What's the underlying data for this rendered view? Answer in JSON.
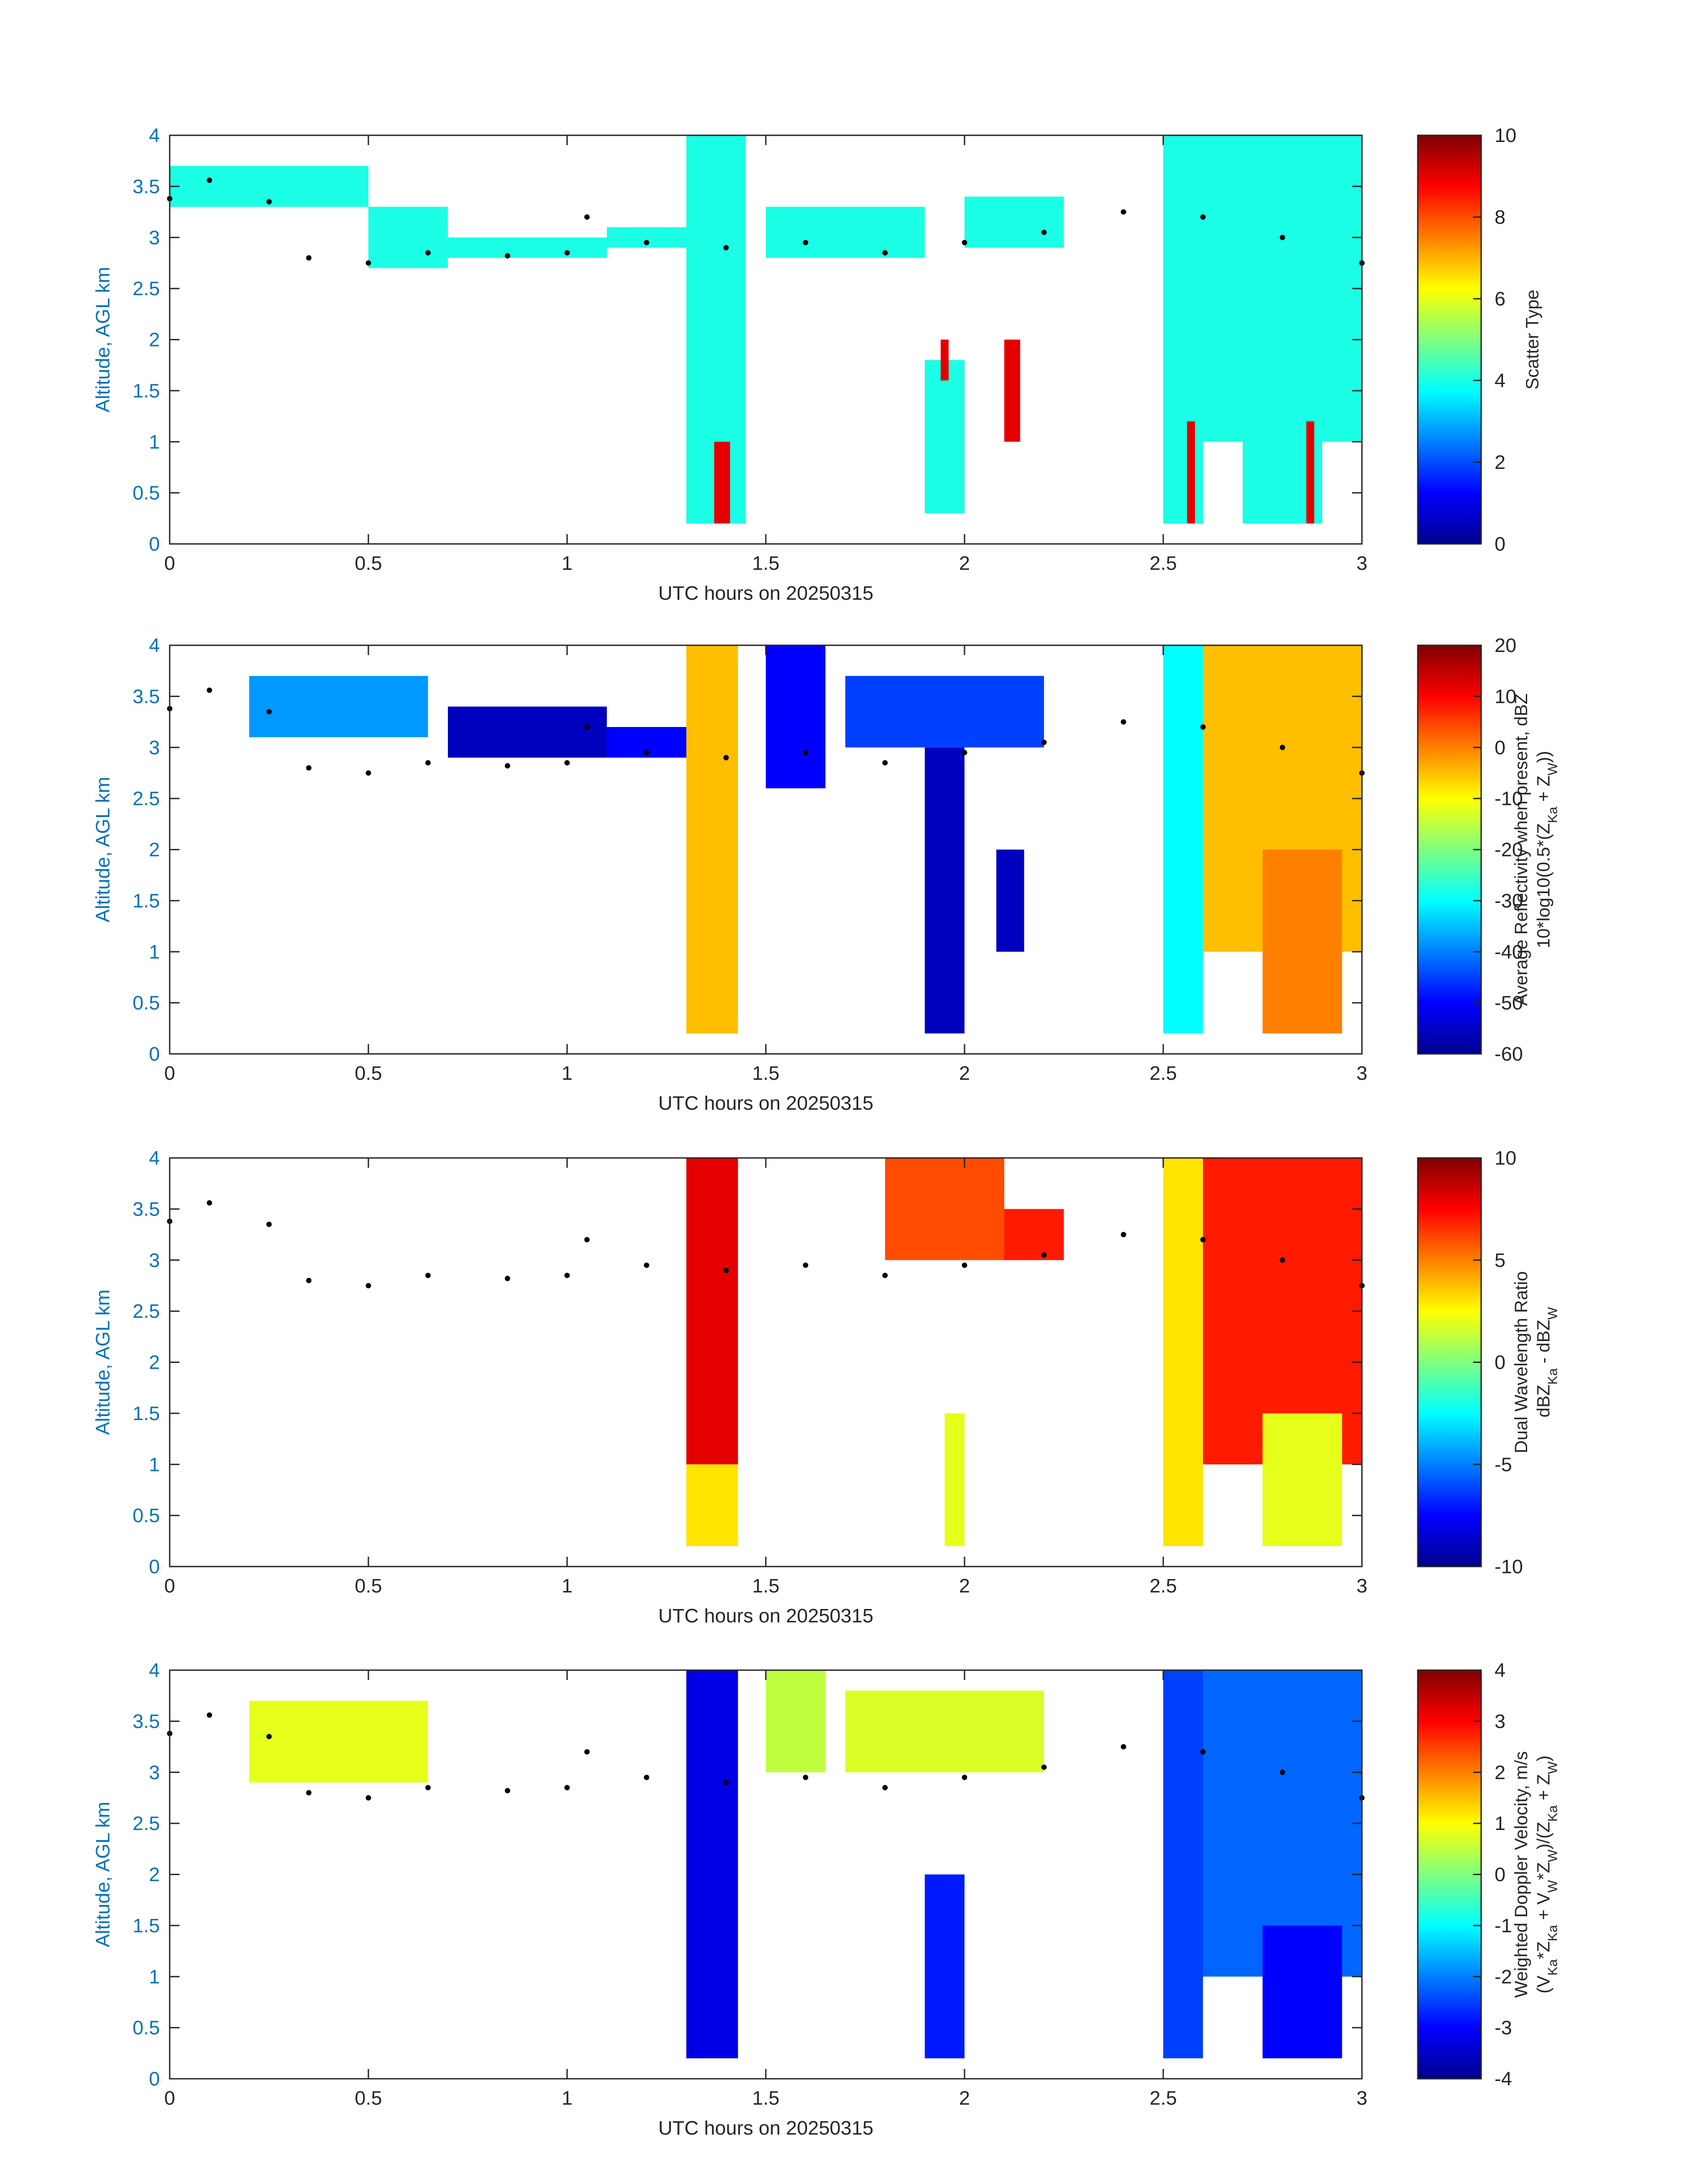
{
  "chart_data": [
    {
      "type": "heatmap",
      "xlabel": "UTC hours on 20250315",
      "ylabel": "Altitude, AGL km",
      "xlim": [
        0,
        3
      ],
      "ylim": [
        0,
        4
      ],
      "x_ticks": [
        "0",
        "0.5",
        "1",
        "1.5",
        "2",
        "2.5",
        "3"
      ],
      "y_ticks": [
        "0",
        "0.5",
        "1",
        "1.5",
        "2",
        "2.5",
        "3",
        "3.5",
        "4"
      ],
      "colorbar": {
        "label_lines": [
          "Scatter Type"
        ],
        "range": [
          0,
          10
        ],
        "ticks": [
          "0",
          "2",
          "4",
          "6",
          "8",
          "10"
        ],
        "colormap": "jet"
      },
      "regions": [
        {
          "x": [
            0.0,
            0.5
          ],
          "y": [
            3.3,
            3.7
          ],
          "value": 4
        },
        {
          "x": [
            0.5,
            0.7
          ],
          "y": [
            2.7,
            3.3
          ],
          "value": 4
        },
        {
          "x": [
            0.7,
            1.1
          ],
          "y": [
            2.8,
            3.0
          ],
          "value": 4
        },
        {
          "x": [
            1.1,
            1.3
          ],
          "y": [
            2.9,
            3.1
          ],
          "value": 4
        },
        {
          "x": [
            1.3,
            1.45
          ],
          "y": [
            0.2,
            4.0
          ],
          "value": 4
        },
        {
          "x": [
            1.5,
            1.9
          ],
          "y": [
            2.8,
            3.3
          ],
          "value": 4
        },
        {
          "x": [
            1.9,
            2.0
          ],
          "y": [
            0.3,
            1.8
          ],
          "value": 4
        },
        {
          "x": [
            2.0,
            2.25
          ],
          "y": [
            2.9,
            3.4
          ],
          "value": 4
        },
        {
          "x": [
            2.5,
            2.6
          ],
          "y": [
            0.2,
            4.0
          ],
          "value": 4
        },
        {
          "x": [
            2.6,
            3.0
          ],
          "y": [
            1.0,
            4.0
          ],
          "value": 4
        },
        {
          "x": [
            2.7,
            2.9
          ],
          "y": [
            0.2,
            1.5
          ],
          "value": 4
        },
        {
          "x": [
            1.37,
            1.41
          ],
          "y": [
            0.2,
            1.0
          ],
          "value": 9
        },
        {
          "x": [
            1.94,
            1.96
          ],
          "y": [
            1.6,
            2.0
          ],
          "value": 9
        },
        {
          "x": [
            2.1,
            2.14
          ],
          "y": [
            1.0,
            2.0
          ],
          "value": 9
        },
        {
          "x": [
            2.56,
            2.58
          ],
          "y": [
            0.2,
            1.2
          ],
          "value": 9
        },
        {
          "x": [
            2.86,
            2.88
          ],
          "y": [
            0.2,
            1.2
          ],
          "value": 9
        }
      ],
      "points": [
        [
          0.0,
          3.38
        ],
        [
          0.1,
          3.56
        ],
        [
          0.25,
          3.35
        ],
        [
          0.35,
          2.8
        ],
        [
          0.5,
          2.75
        ],
        [
          0.65,
          2.85
        ],
        [
          0.85,
          2.82
        ],
        [
          1.0,
          2.85
        ],
        [
          1.05,
          3.2
        ],
        [
          1.2,
          2.95
        ],
        [
          1.4,
          2.9
        ],
        [
          1.6,
          2.95
        ],
        [
          1.8,
          2.85
        ],
        [
          2.0,
          2.95
        ],
        [
          2.2,
          3.05
        ],
        [
          2.4,
          3.25
        ],
        [
          2.6,
          3.2
        ],
        [
          2.8,
          3.0
        ],
        [
          3.0,
          2.75
        ]
      ]
    },
    {
      "type": "heatmap",
      "xlabel": "UTC hours on 20250315",
      "ylabel": "Altitude, AGL km",
      "xlim": [
        0,
        3
      ],
      "ylim": [
        0,
        4
      ],
      "x_ticks": [
        "0",
        "0.5",
        "1",
        "1.5",
        "2",
        "2.5",
        "3"
      ],
      "y_ticks": [
        "0",
        "0.5",
        "1",
        "1.5",
        "2",
        "2.5",
        "3",
        "3.5",
        "4"
      ],
      "colorbar": {
        "label_lines": [
          "Average Reflectivity when present, dBZ",
          "10*log10(0.5*(Z_Ka + Z_W))"
        ],
        "range": [
          -60,
          20
        ],
        "ticks": [
          "-60",
          "-50",
          "-40",
          "-30",
          "-20",
          "-10",
          "0",
          "10",
          "20"
        ],
        "colormap": "jet"
      },
      "regions": [
        {
          "x": [
            0.2,
            0.65
          ],
          "y": [
            3.1,
            3.7
          ],
          "value": -38
        },
        {
          "x": [
            0.7,
            1.1
          ],
          "y": [
            2.9,
            3.4
          ],
          "value": -55
        },
        {
          "x": [
            1.1,
            1.3
          ],
          "y": [
            2.9,
            3.2
          ],
          "value": -50
        },
        {
          "x": [
            1.3,
            1.43
          ],
          "y": [
            0.2,
            4.0
          ],
          "value": -5
        },
        {
          "x": [
            1.5,
            1.65
          ],
          "y": [
            2.6,
            4.0
          ],
          "value": -50
        },
        {
          "x": [
            1.7,
            2.2
          ],
          "y": [
            3.0,
            3.7
          ],
          "value": -45
        },
        {
          "x": [
            1.9,
            2.0
          ],
          "y": [
            0.2,
            3.0
          ],
          "value": -55
        },
        {
          "x": [
            2.08,
            2.15
          ],
          "y": [
            1.0,
            2.0
          ],
          "value": -55
        },
        {
          "x": [
            2.5,
            2.6
          ],
          "y": [
            0.2,
            4.0
          ],
          "value": -30
        },
        {
          "x": [
            2.6,
            3.0
          ],
          "y": [
            1.0,
            4.0
          ],
          "value": -5
        },
        {
          "x": [
            2.75,
            2.95
          ],
          "y": [
            0.2,
            2.0
          ],
          "value": 0
        }
      ],
      "points": [
        [
          0.0,
          3.38
        ],
        [
          0.1,
          3.56
        ],
        [
          0.25,
          3.35
        ],
        [
          0.35,
          2.8
        ],
        [
          0.5,
          2.75
        ],
        [
          0.65,
          2.85
        ],
        [
          0.85,
          2.82
        ],
        [
          1.0,
          2.85
        ],
        [
          1.05,
          3.2
        ],
        [
          1.2,
          2.95
        ],
        [
          1.4,
          2.9
        ],
        [
          1.6,
          2.95
        ],
        [
          1.8,
          2.85
        ],
        [
          2.0,
          2.95
        ],
        [
          2.2,
          3.05
        ],
        [
          2.4,
          3.25
        ],
        [
          2.6,
          3.2
        ],
        [
          2.8,
          3.0
        ],
        [
          3.0,
          2.75
        ]
      ]
    },
    {
      "type": "heatmap",
      "xlabel": "UTC hours on 20250315",
      "ylabel": "Altitude, AGL km",
      "xlim": [
        0,
        3
      ],
      "ylim": [
        0,
        4
      ],
      "x_ticks": [
        "0",
        "0.5",
        "1",
        "1.5",
        "2",
        "2.5",
        "3"
      ],
      "y_ticks": [
        "0",
        "0.5",
        "1",
        "1.5",
        "2",
        "2.5",
        "3",
        "3.5",
        "4"
      ],
      "colorbar": {
        "label_lines": [
          "Dual Wavelength Ratio",
          "dBZ_Ka - dBZ_W"
        ],
        "range": [
          -10,
          10
        ],
        "ticks": [
          "-10",
          "-5",
          "0",
          "5",
          "10"
        ],
        "colormap": "jet"
      },
      "regions": [
        {
          "x": [
            1.3,
            1.43
          ],
          "y": [
            1.0,
            4.0
          ],
          "value": 8
        },
        {
          "x": [
            1.3,
            1.43
          ],
          "y": [
            0.2,
            1.0
          ],
          "value": 3
        },
        {
          "x": [
            1.8,
            2.1
          ],
          "y": [
            3.0,
            4.0
          ],
          "value": 6
        },
        {
          "x": [
            2.1,
            2.25
          ],
          "y": [
            3.0,
            3.5
          ],
          "value": 7
        },
        {
          "x": [
            1.95,
            2.0
          ],
          "y": [
            0.2,
            1.5
          ],
          "value": 2
        },
        {
          "x": [
            2.5,
            2.6
          ],
          "y": [
            0.2,
            4.0
          ],
          "value": 3
        },
        {
          "x": [
            2.6,
            3.0
          ],
          "y": [
            1.0,
            4.0
          ],
          "value": 7
        },
        {
          "x": [
            2.75,
            2.95
          ],
          "y": [
            0.2,
            1.5
          ],
          "value": 2
        }
      ],
      "points": [
        [
          0.0,
          3.38
        ],
        [
          0.1,
          3.56
        ],
        [
          0.25,
          3.35
        ],
        [
          0.35,
          2.8
        ],
        [
          0.5,
          2.75
        ],
        [
          0.65,
          2.85
        ],
        [
          0.85,
          2.82
        ],
        [
          1.0,
          2.85
        ],
        [
          1.05,
          3.2
        ],
        [
          1.2,
          2.95
        ],
        [
          1.4,
          2.9
        ],
        [
          1.6,
          2.95
        ],
        [
          1.8,
          2.85
        ],
        [
          2.0,
          2.95
        ],
        [
          2.2,
          3.05
        ],
        [
          2.4,
          3.25
        ],
        [
          2.6,
          3.2
        ],
        [
          2.8,
          3.0
        ],
        [
          3.0,
          2.75
        ]
      ]
    },
    {
      "type": "heatmap",
      "xlabel": "UTC hours on 20250315",
      "ylabel": "Altitude, AGL km",
      "xlim": [
        0,
        3
      ],
      "ylim": [
        0,
        4
      ],
      "x_ticks": [
        "0",
        "0.5",
        "1",
        "1.5",
        "2",
        "2.5",
        "3"
      ],
      "y_ticks": [
        "0",
        "0.5",
        "1",
        "1.5",
        "2",
        "2.5",
        "3",
        "3.5",
        "4"
      ],
      "colorbar": {
        "label_lines": [
          "Weighted Doppler Velocity, m/s",
          "(V_Ka*Z_Ka + V_W*Z_W)/(Z_Ka + Z_W)"
        ],
        "range": [
          -4,
          4
        ],
        "ticks": [
          "-4",
          "-3",
          "-2",
          "-1",
          "0",
          "1",
          "2",
          "3",
          "4"
        ],
        "colormap": "jet"
      },
      "regions": [
        {
          "x": [
            0.2,
            0.65
          ],
          "y": [
            2.9,
            3.7
          ],
          "value": 0.8
        },
        {
          "x": [
            1.3,
            1.43
          ],
          "y": [
            0.2,
            4.0
          ],
          "value": -3.2
        },
        {
          "x": [
            1.5,
            1.65
          ],
          "y": [
            3.0,
            4.0
          ],
          "value": 0.5
        },
        {
          "x": [
            1.7,
            2.2
          ],
          "y": [
            3.0,
            3.8
          ],
          "value": 0.7
        },
        {
          "x": [
            1.9,
            2.0
          ],
          "y": [
            0.2,
            2.0
          ],
          "value": -2.8
        },
        {
          "x": [
            2.5,
            2.6
          ],
          "y": [
            0.2,
            4.0
          ],
          "value": -2.5
        },
        {
          "x": [
            2.6,
            3.0
          ],
          "y": [
            1.0,
            4.0
          ],
          "value": -2.2
        },
        {
          "x": [
            2.75,
            2.95
          ],
          "y": [
            0.2,
            1.5
          ],
          "value": -3.0
        }
      ],
      "points": [
        [
          0.0,
          3.38
        ],
        [
          0.1,
          3.56
        ],
        [
          0.25,
          3.35
        ],
        [
          0.35,
          2.8
        ],
        [
          0.5,
          2.75
        ],
        [
          0.65,
          2.85
        ],
        [
          0.85,
          2.82
        ],
        [
          1.0,
          2.85
        ],
        [
          1.05,
          3.2
        ],
        [
          1.2,
          2.95
        ],
        [
          1.4,
          2.9
        ],
        [
          1.6,
          2.95
        ],
        [
          1.8,
          2.85
        ],
        [
          2.0,
          2.95
        ],
        [
          2.2,
          3.05
        ],
        [
          2.4,
          3.25
        ],
        [
          2.6,
          3.2
        ],
        [
          2.8,
          3.0
        ],
        [
          3.0,
          2.75
        ]
      ]
    }
  ]
}
